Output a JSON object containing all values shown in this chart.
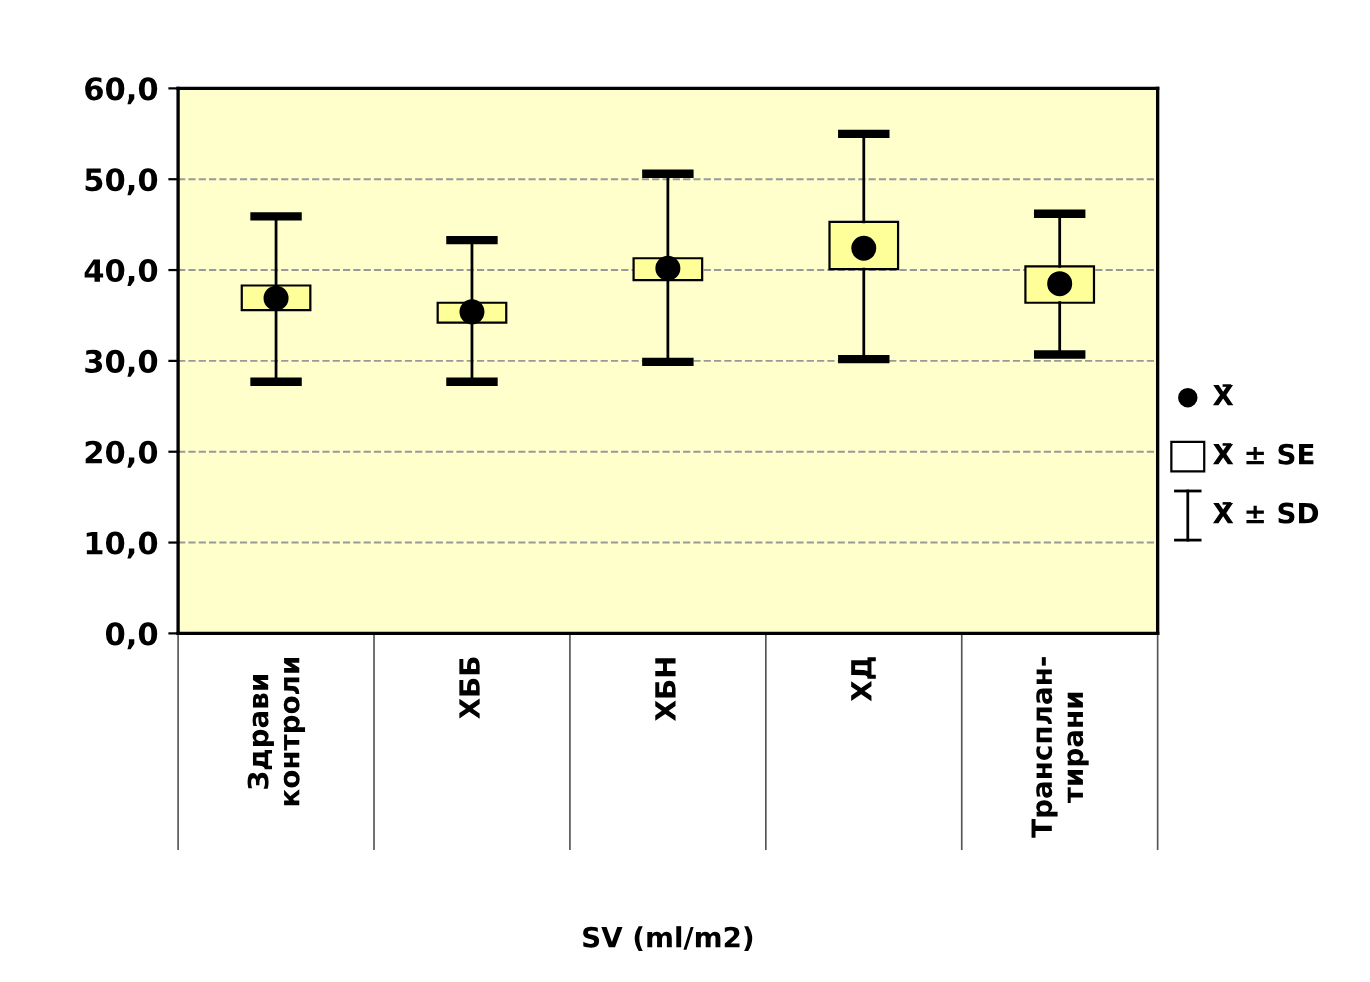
{
  "chart_data": {
    "type": "box",
    "categories": [
      "Здрави\nконтроли",
      "ХББ",
      "ХБН",
      "ХД",
      "Трансплан-\nтирани"
    ],
    "xlabel": "SV (ml/m2)",
    "boxes": [
      {
        "low": 27.7,
        "q1": 35.6,
        "q3": 38.3,
        "high": 45.9,
        "mean": 36.9
      },
      {
        "low": 27.7,
        "q1": 34.2,
        "q3": 36.4,
        "high": 43.3,
        "mean": 35.4
      },
      {
        "low": 29.9,
        "q1": 38.9,
        "q3": 41.3,
        "high": 50.6,
        "mean": 40.2
      },
      {
        "low": 30.2,
        "q1": 40.1,
        "q3": 45.3,
        "high": 55.0,
        "mean": 42.4
      },
      {
        "low": 30.7,
        "q1": 36.4,
        "q3": 40.4,
        "high": 46.2,
        "mean": 38.5
      }
    ],
    "color": "#ffff99",
    "ylim": [
      0,
      60
    ],
    "yticks": [
      {
        "value": 0,
        "label": "0,0"
      },
      {
        "value": 10,
        "label": "10,0"
      },
      {
        "value": 20,
        "label": "20,0"
      },
      {
        "value": 30,
        "label": "30,0"
      },
      {
        "value": 40,
        "label": "40,0"
      },
      {
        "value": 50,
        "label": "50,0"
      },
      {
        "value": 60,
        "label": "60,0"
      }
    ],
    "grid": "y",
    "line_style": "dashed",
    "marker": "circle",
    "annotations": [
      "X̄",
      "X̄ ± SE",
      "X̄ ± SD"
    ]
  }
}
